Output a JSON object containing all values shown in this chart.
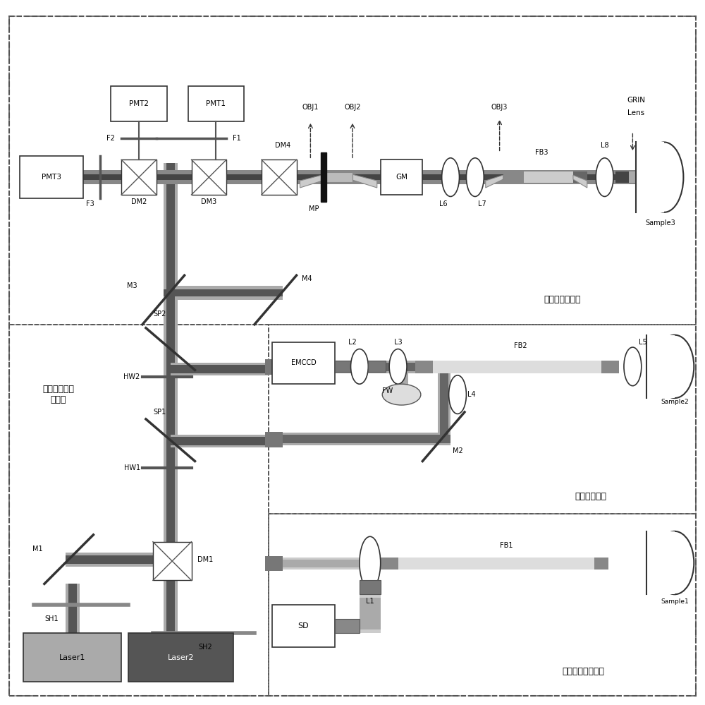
{
  "bg_color": "#ffffff",
  "figsize": [
    10,
    9.99
  ],
  "dpi": 100,
  "title_top": "靶细胞成像光路",
  "title_mid": "组织成像光路",
  "title_bot": "荧光强度监测光路",
  "title_left": "激光融合及分\n光光路"
}
